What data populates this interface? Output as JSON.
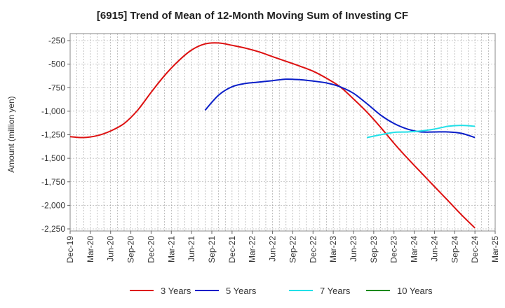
{
  "title": "[6915]  Trend of Mean of 12-Month Moving Sum of Investing CF",
  "chart_data": {
    "type": "line",
    "title": "[6915]  Trend of Mean of 12-Month Moving Sum of Investing CF",
    "xlabel": "",
    "ylabel": "Amount (million yen)",
    "ylim": [
      -2250,
      -250
    ],
    "y_ticks": [
      "-250",
      "-500",
      "-750",
      "-1,000",
      "-1,250",
      "-1,500",
      "-1,750",
      "-2,000",
      "-2,250"
    ],
    "y_tick_values": [
      -250,
      -500,
      -750,
      -1000,
      -1250,
      -1500,
      -1750,
      -2000,
      -2250
    ],
    "x_tick_labels": [
      "Dec-19",
      "Mar-20",
      "Jun-20",
      "Sep-20",
      "Dec-20",
      "Mar-21",
      "Jun-21",
      "Sep-21",
      "Dec-21",
      "Mar-22",
      "Jun-22",
      "Sep-22",
      "Dec-22",
      "Mar-23",
      "Jun-23",
      "Sep-23",
      "Dec-23",
      "Mar-24",
      "Jun-24",
      "Sep-24",
      "Dec-24",
      "Mar-25"
    ],
    "x_index_range": [
      0,
      63
    ],
    "grid": true,
    "legend_position": "bottom",
    "series": [
      {
        "name": "3 Years",
        "color": "#dd1111",
        "x": [
          0,
          2,
          4,
          6,
          8,
          10,
          12,
          14,
          16,
          18,
          20,
          22,
          24,
          26,
          28,
          30,
          32,
          34,
          36,
          38,
          40,
          42,
          44,
          46,
          48,
          50,
          52,
          54,
          56,
          58,
          60
        ],
        "values": [
          -1270,
          -1280,
          -1260,
          -1210,
          -1130,
          -990,
          -800,
          -620,
          -470,
          -350,
          -285,
          -275,
          -300,
          -330,
          -370,
          -420,
          -470,
          -520,
          -575,
          -650,
          -740,
          -870,
          -1010,
          -1170,
          -1340,
          -1500,
          -1650,
          -1800,
          -1950,
          -2100,
          -2240
        ]
      },
      {
        "name": "5 Years",
        "color": "#0a1ec8",
        "x": [
          20,
          22,
          24,
          26,
          28,
          30,
          32,
          34,
          36,
          38,
          40,
          42,
          44,
          46,
          48,
          50,
          52,
          54,
          56,
          58,
          60
        ],
        "values": [
          -990,
          -830,
          -740,
          -705,
          -690,
          -675,
          -660,
          -665,
          -680,
          -700,
          -740,
          -810,
          -920,
          -1040,
          -1130,
          -1190,
          -1220,
          -1220,
          -1220,
          -1235,
          -1280
        ]
      },
      {
        "name": "7 Years",
        "color": "#22e0e8",
        "x": [
          44,
          46,
          48,
          50,
          52,
          54,
          56,
          58,
          60
        ],
        "values": [
          -1280,
          -1250,
          -1225,
          -1220,
          -1210,
          -1190,
          -1160,
          -1150,
          -1160
        ]
      },
      {
        "name": "10 Years",
        "color": "#1a8a1a",
        "x": [],
        "values": []
      }
    ]
  }
}
